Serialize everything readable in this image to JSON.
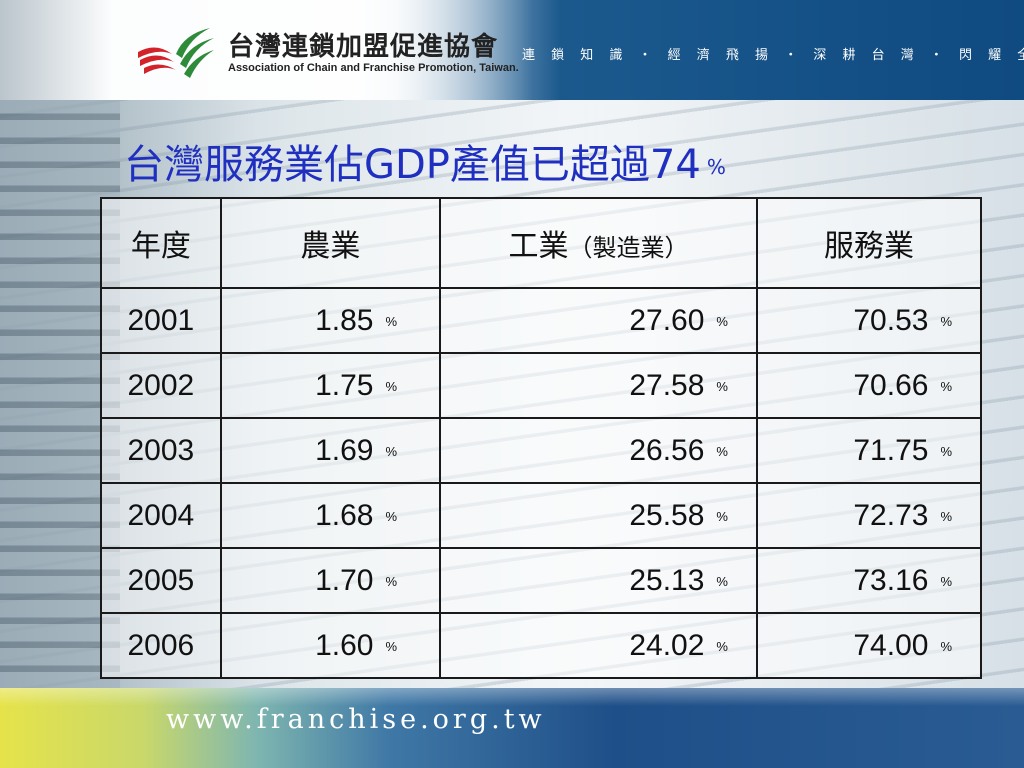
{
  "header": {
    "org_name_zh": "台灣連鎖加盟促進協會",
    "org_name_en": "Association of Chain and Franchise Promotion, Taiwan.",
    "slogan": "連 鎖 知 識 ・ 經 濟 飛 揚 ・ 深 耕 台 灣 ・ 閃 耀 全 球"
  },
  "title": {
    "text": "台灣服務業佔GDP產值已超過74",
    "pct": "%"
  },
  "table": {
    "headers": [
      "年度",
      "農業",
      "工業",
      "（製造業）",
      "服務業"
    ],
    "unit": "%",
    "rows": [
      {
        "year": "2001",
        "agri": "1.85",
        "industry": "27.60",
        "service": "70.53"
      },
      {
        "year": "2002",
        "agri": "1.75",
        "industry": "27.58",
        "service": "70.66"
      },
      {
        "year": "2003",
        "agri": "1.69",
        "industry": "26.56",
        "service": "71.75"
      },
      {
        "year": "2004",
        "agri": "1.68",
        "industry": "25.58",
        "service": "72.73"
      },
      {
        "year": "2005",
        "agri": "1.70",
        "industry": "25.13",
        "service": "73.16"
      },
      {
        "year": "2006",
        "agri": "1.60",
        "industry": "24.02",
        "service": "74.00"
      }
    ]
  },
  "footer": {
    "url": "www.franchise.org.tw"
  },
  "colors": {
    "title": "#1f2fc0",
    "header_blue": "#0f4a80",
    "logo_red": "#d2232a",
    "logo_green": "#2e8b3a"
  },
  "icons": {
    "logo": "stripes-logo-icon"
  }
}
